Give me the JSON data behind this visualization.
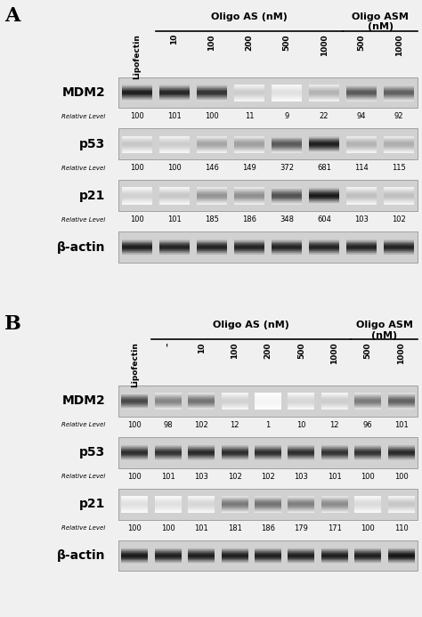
{
  "panel_A": {
    "label": "A",
    "header_oligo_as": "Oligo AS (nM)",
    "header_oligo_asm": "Oligo ASM\n(nM)",
    "col_labels": [
      "Lipofectin",
      "10",
      "100",
      "200",
      "500",
      "1000",
      "500",
      "1000"
    ],
    "as_cols": [
      1,
      5
    ],
    "asm_cols": [
      6,
      7
    ],
    "proteins": [
      "MDM2",
      "p53",
      "p21",
      "β-actin"
    ],
    "relative_levels": {
      "MDM2": [
        "100",
        "101",
        "100",
        "11",
        "9",
        "22",
        "94",
        "92"
      ],
      "p53": [
        "100",
        "100",
        "146",
        "149",
        "372",
        "681",
        "114",
        "115"
      ],
      "p21": [
        "100",
        "101",
        "185",
        "186",
        "348",
        "604",
        "103",
        "102"
      ]
    },
    "band_intensities": {
      "MDM2": [
        0.88,
        0.85,
        0.8,
        0.2,
        0.12,
        0.3,
        0.65,
        0.62
      ],
      "p53": [
        0.22,
        0.2,
        0.35,
        0.38,
        0.65,
        0.88,
        0.3,
        0.32
      ],
      "p21": [
        0.18,
        0.22,
        0.42,
        0.44,
        0.68,
        0.9,
        0.25,
        0.25
      ],
      "b-actin": [
        0.88,
        0.86,
        0.86,
        0.86,
        0.86,
        0.86,
        0.86,
        0.86
      ]
    },
    "band_bg": [
      0.82,
      0.82,
      0.82,
      0.82,
      0.82,
      0.82,
      0.82,
      0.82
    ],
    "bg_A_MDM2": [
      0.72,
      0.72,
      0.72,
      0.72,
      0.72,
      0.72,
      0.72,
      0.72
    ],
    "bg_A_p53": [
      0.78,
      0.78,
      0.78,
      0.78,
      0.78,
      0.78,
      0.78,
      0.78
    ],
    "bg_A_p21": [
      0.8,
      0.8,
      0.8,
      0.8,
      0.8,
      0.8,
      0.8,
      0.8
    ],
    "bg_A_bactin": [
      0.65,
      0.65,
      0.65,
      0.65,
      0.65,
      0.65,
      0.65,
      0.65
    ]
  },
  "panel_B": {
    "label": "B",
    "header_oligo_as": "Oligo AS (nM)",
    "header_oligo_asm": "Oligo ASM\n(nM)",
    "col_labels": [
      "Lipofectin",
      "–",
      "10",
      "100",
      "200",
      "500",
      "1000",
      "500",
      "1000"
    ],
    "as_cols": [
      1,
      6
    ],
    "asm_cols": [
      7,
      8
    ],
    "proteins": [
      "MDM2",
      "p53",
      "p21",
      "β-actin"
    ],
    "relative_levels": {
      "MDM2": [
        "100",
        "98",
        "102",
        "12",
        "1",
        "10",
        "12",
        "96",
        "101"
      ],
      "p53": [
        "100",
        "101",
        "103",
        "102",
        "102",
        "103",
        "101",
        "100",
        "100"
      ],
      "p21": [
        "100",
        "100",
        "101",
        "181",
        "186",
        "179",
        "171",
        "100",
        "110"
      ]
    },
    "band_intensities": {
      "MDM2": [
        0.72,
        0.48,
        0.55,
        0.18,
        0.04,
        0.16,
        0.2,
        0.52,
        0.62
      ],
      "p53": [
        0.82,
        0.8,
        0.84,
        0.82,
        0.82,
        0.82,
        0.8,
        0.8,
        0.84
      ],
      "p21": [
        0.12,
        0.12,
        0.16,
        0.52,
        0.55,
        0.5,
        0.45,
        0.14,
        0.22
      ],
      "b-actin": [
        0.9,
        0.88,
        0.88,
        0.88,
        0.88,
        0.88,
        0.88,
        0.88,
        0.92
      ]
    }
  },
  "figure_bg": "#f0f0f0"
}
